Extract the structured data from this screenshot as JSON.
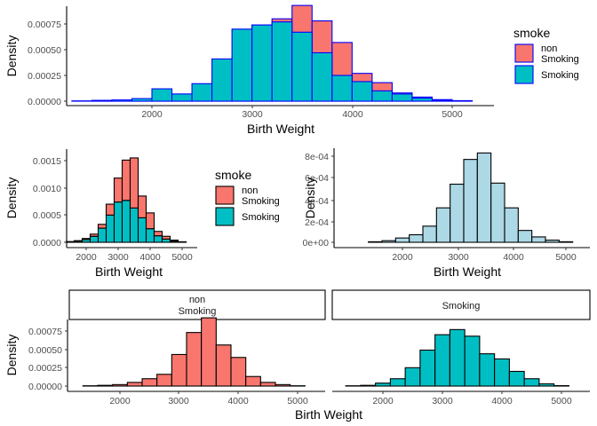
{
  "colors": {
    "non_smoking": "#F8766D",
    "smoking": "#00BFC4",
    "pooled": "#ADD8E6",
    "top_outline": "#0000FF",
    "outline": "#000000"
  },
  "chart_data": [
    {
      "type": "bar",
      "title": "",
      "xlabel": "Birth Weight",
      "ylabel": "Density",
      "x_ticks": [
        "2000",
        "3000",
        "4000",
        "5000"
      ],
      "y_ticks": [
        "0.00000",
        "0.00025",
        "0.00050",
        "0.00075"
      ],
      "xlim": [
        1200,
        5400
      ],
      "ylim": [
        0,
        0.00098
      ],
      "bar_position": "dodge",
      "bar_width_g": 200,
      "legend": {
        "title": "smoke",
        "position": "right",
        "items": [
          {
            "line1": "non",
            "line2": "Smoking"
          },
          {
            "line1": "Smoking",
            "line2": ""
          }
        ]
      },
      "series": [
        {
          "name": "non Smoking",
          "key": "non_smoking",
          "x": [
            1500,
            1700,
            1900,
            2100,
            2300,
            2500,
            2700,
            2900,
            3100,
            3300,
            3500,
            3700,
            3900,
            4100,
            4300,
            4500,
            4700,
            4900,
            5100
          ],
          "values": [
            3e-06,
            8e-06,
            1.7e-05,
            3e-05,
            6e-05,
            8e-05,
            0.00013,
            0.00043,
            0.00074,
            0.0008,
            0.00093,
            0.00078,
            0.00057,
            0.00027,
            0.00018,
            8e-05,
            4e-05,
            1.5e-05,
            5e-06
          ]
        },
        {
          "name": "Smoking",
          "key": "smoking",
          "x": [
            1300,
            1500,
            1700,
            1900,
            2100,
            2300,
            2500,
            2700,
            2900,
            3100,
            3300,
            3500,
            3700,
            3900,
            4100,
            4300,
            4500,
            4700,
            4900,
            5100
          ],
          "values": [
            3e-06,
            8e-06,
            1.2e-05,
            2.5e-05,
            0.00012,
            7e-05,
            0.00017,
            0.00041,
            0.0007,
            0.00074,
            0.00077,
            0.00067,
            0.00047,
            0.00025,
            0.00019,
            0.0001,
            7e-05,
            3e-05,
            1e-05,
            3e-06
          ]
        }
      ]
    },
    {
      "type": "bar",
      "title": "",
      "xlabel": "Birth Weight",
      "ylabel": "Density",
      "x_ticks": [
        "2000",
        "3000",
        "4000",
        "5000"
      ],
      "y_ticks": [
        "0.0000",
        "0.0005",
        "0.0010",
        "0.0015"
      ],
      "xlim": [
        1200,
        5400
      ],
      "ylim": [
        0,
        0.00172
      ],
      "bar_position": "stack",
      "bin_centers": [
        1500,
        1750,
        2000,
        2250,
        2500,
        2750,
        3000,
        3250,
        3500,
        3750,
        4000,
        4250,
        4500,
        4750,
        5000
      ],
      "legend": {
        "title": "smoke",
        "position": "right",
        "items": [
          {
            "line1": "non",
            "line2": "Smoking"
          },
          {
            "line1": "Smoking",
            "line2": ""
          }
        ]
      },
      "series": [
        {
          "name": "Smoking",
          "key": "smoking",
          "values": [
            8e-06,
            2e-05,
            5e-05,
            0.00011,
            0.00026,
            0.0005,
            0.00074,
            0.00077,
            0.00063,
            0.00045,
            0.00025,
            0.00012,
            6e-05,
            2e-05,
            5e-06
          ]
        },
        {
          "name": "non Smoking",
          "key": "non_smoking",
          "values": [
            5e-06,
            1e-05,
            2e-05,
            4e-05,
            7e-05,
            0.0002,
            0.00044,
            0.00074,
            0.00092,
            0.0004,
            0.00029,
            8e-05,
            5e-05,
            2e-05,
            5e-06
          ]
        }
      ]
    },
    {
      "type": "bar",
      "title": "",
      "xlabel": "Birth Weight",
      "ylabel": "Density",
      "x_ticks": [
        "2000",
        "3000",
        "4000",
        "5000"
      ],
      "y_ticks": [
        "0e+00",
        "2e-04",
        "4e-04",
        "6e-04",
        "8e-04"
      ],
      "xlim": [
        1200,
        5400
      ],
      "ylim": [
        0,
        0.00088
      ],
      "bar_position": "identity",
      "bin_centers": [
        1500,
        1750,
        2000,
        2250,
        2500,
        2750,
        3000,
        3250,
        3500,
        3750,
        4000,
        4250,
        4500,
        4750,
        5000
      ],
      "series": [
        {
          "name": "",
          "key": "pooled",
          "values": [
            5e-06,
            1.5e-05,
            4e-05,
            7e-05,
            0.00015,
            0.00032,
            0.00054,
            0.00077,
            0.00083,
            0.00055,
            0.00032,
            0.00011,
            5e-05,
            2e-05,
            5e-06
          ]
        }
      ]
    },
    {
      "type": "bar",
      "title": "",
      "xlabel": "Birth Weight",
      "ylabel": "Density",
      "x_ticks": [
        "2000",
        "3000",
        "4000",
        "5000"
      ],
      "y_ticks": [
        "0.00000",
        "0.00025",
        "0.00050",
        "0.00075"
      ],
      "xlim": [
        1200,
        5400
      ],
      "ylim": [
        0,
        0.00098
      ],
      "bar_position": "identity",
      "bin_centers": [
        1500,
        1750,
        2000,
        2250,
        2500,
        2750,
        3000,
        3250,
        3500,
        3750,
        4000,
        4250,
        4500,
        4750,
        5000
      ],
      "facets": [
        {
          "strip_line1": "non",
          "strip_line2": "Smoking",
          "key": "non_smoking",
          "values": [
            4e-06,
            1e-05,
            2e-05,
            5e-05,
            0.0001,
            0.00016,
            0.00043,
            0.00073,
            0.00093,
            0.00056,
            0.00039,
            0.00013,
            5e-05,
            2e-05,
            4e-06
          ]
        },
        {
          "strip_line1": "Smoking",
          "strip_line2": "",
          "key": "smoking",
          "values": [
            4e-06,
            1e-05,
            4e-05,
            0.0001,
            0.00025,
            0.00049,
            0.0007,
            0.00077,
            0.00068,
            0.00044,
            0.00037,
            0.0002,
            0.0001,
            3e-05,
            6e-06
          ]
        }
      ]
    }
  ]
}
